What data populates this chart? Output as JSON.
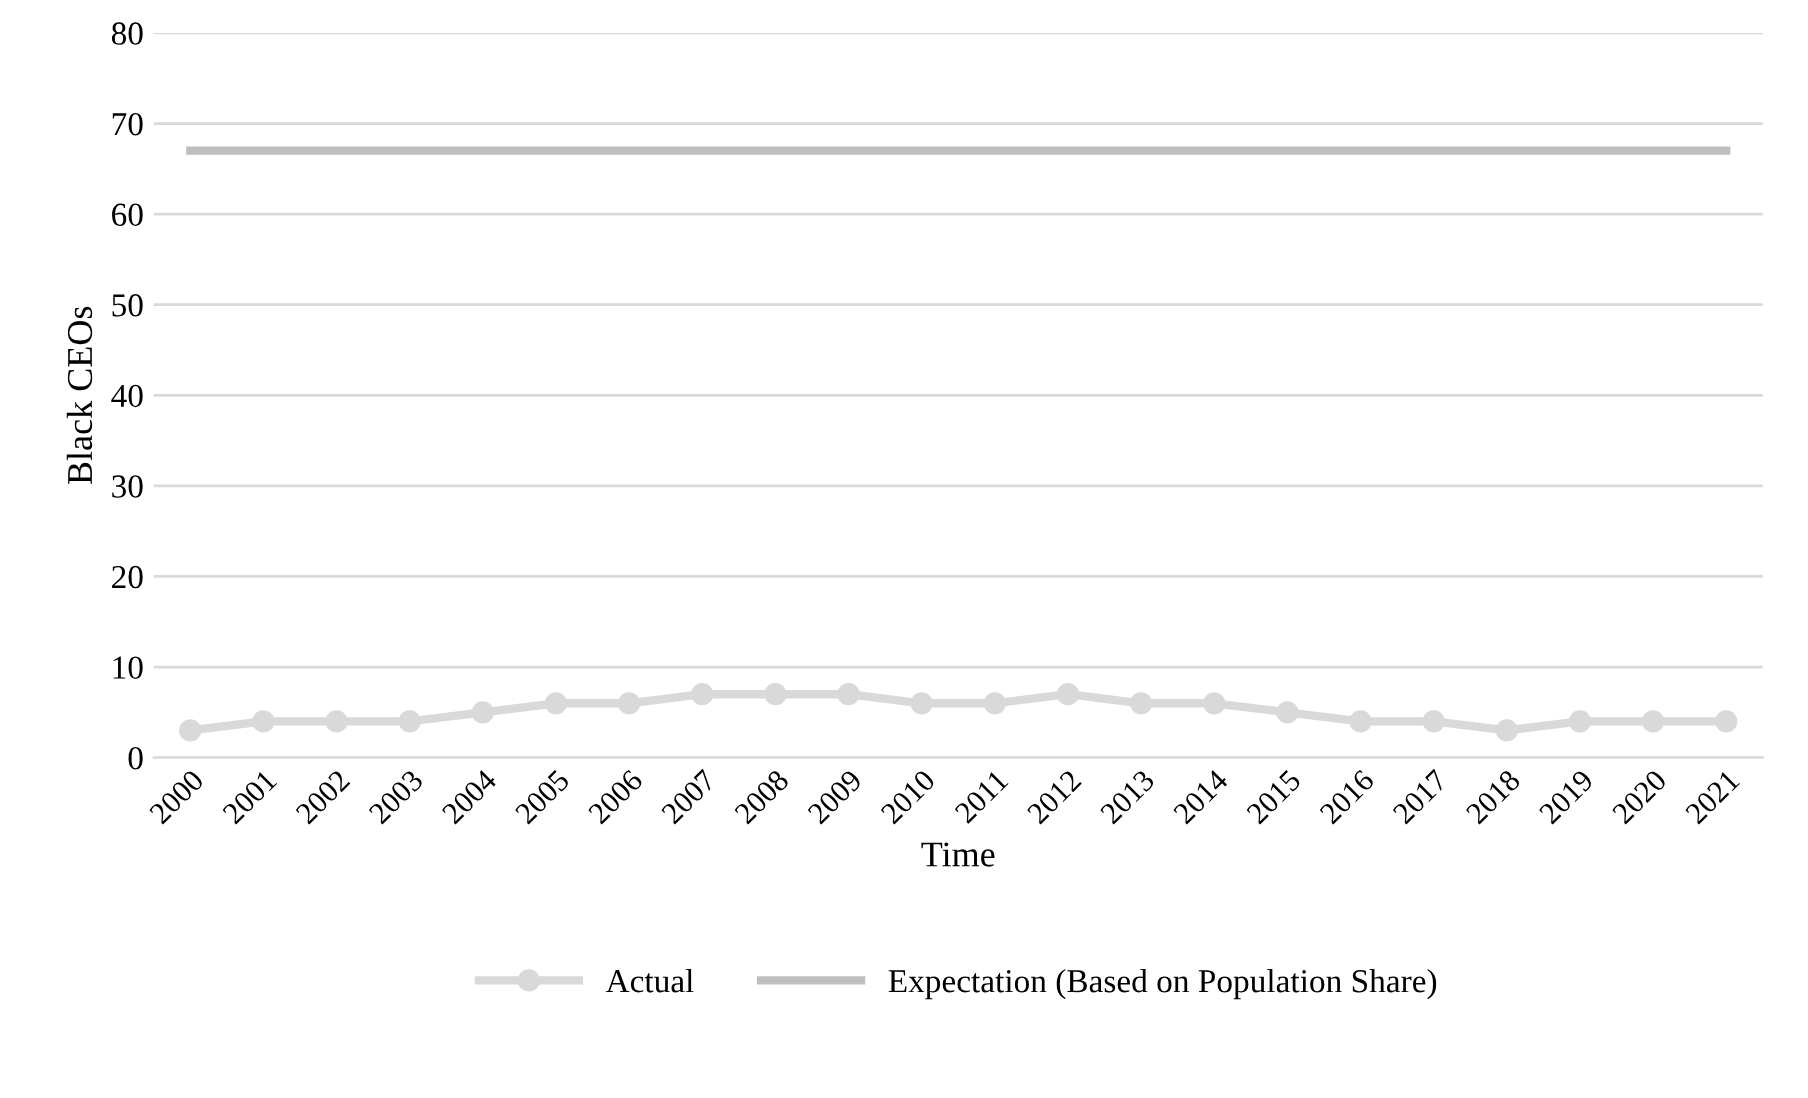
{
  "chart_data": {
    "type": "line",
    "xlabel": "Time",
    "ylabel": "Black CEOs",
    "categories": [
      "2000",
      "2001",
      "2002",
      "2003",
      "2004",
      "2005",
      "2006",
      "2007",
      "2008",
      "2009",
      "2010",
      "2011",
      "2012",
      "2013",
      "2014",
      "2015",
      "2016",
      "2017",
      "2018",
      "2019",
      "2020",
      "2021"
    ],
    "series": [
      {
        "name": "Actual",
        "color": "#d9d9d9",
        "marker": "circle",
        "values": [
          3,
          4,
          4,
          4,
          5,
          6,
          6,
          7,
          7,
          7,
          6,
          6,
          7,
          6,
          6,
          5,
          4,
          4,
          3,
          4,
          4,
          4
        ]
      },
      {
        "name": "Expectation (Based on Population Share)",
        "color": "#bfbfbf",
        "marker": "none",
        "values": [
          67,
          67,
          67,
          67,
          67,
          67,
          67,
          67,
          67,
          67,
          67,
          67,
          67,
          67,
          67,
          67,
          67,
          67,
          67,
          67,
          67,
          67
        ]
      }
    ],
    "ylim": [
      0,
      80
    ],
    "yticks": [
      0,
      10,
      20,
      30,
      40,
      50,
      60,
      70,
      80
    ],
    "grid": "y",
    "legend": "bottom",
    "line_style": "solid"
  }
}
